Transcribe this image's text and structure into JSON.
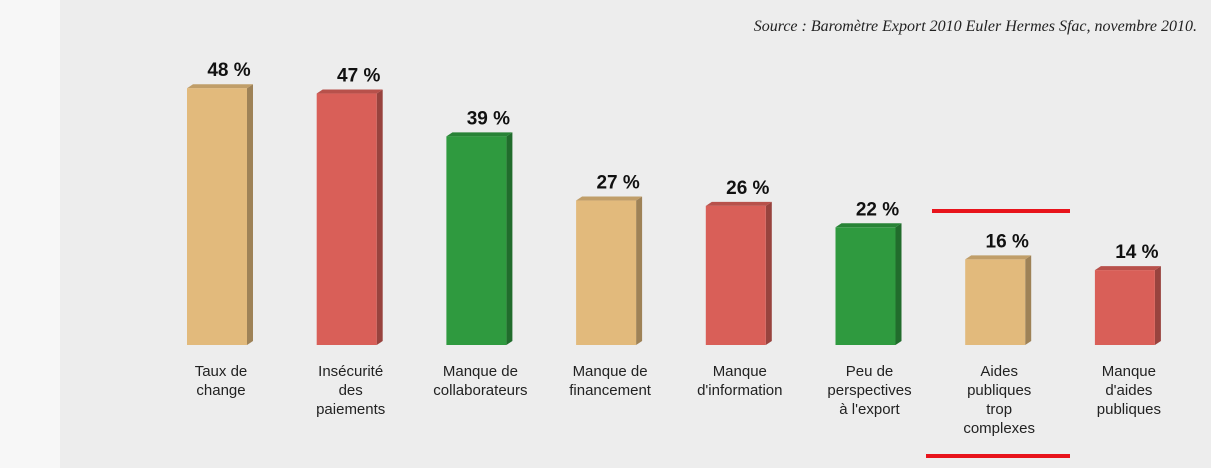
{
  "chart_data": {
    "type": "bar",
    "source": "Source : Baromètre Export 2010 Euler Hermes Sfac, novembre 2010.",
    "categories": [
      "Taux de\nchange",
      "Insécurité\ndes\npaiements",
      "Manque de\ncollaborateurs",
      "Manque de\nfinancement",
      "Manque\nd'information",
      "Peu de\nperspectives\nà l'export",
      "Aides\npubliques\ntrop\ncomplexes",
      "Manque\nd'aides\npubliques"
    ],
    "values": [
      48,
      47,
      39,
      27,
      26,
      22,
      16,
      14
    ],
    "value_labels": [
      "48 %",
      "47 %",
      "39 %",
      "27 %",
      "26 %",
      "22 %",
      "16 %",
      "14 %"
    ],
    "colors": [
      "#e2ba7c",
      "#d95f58",
      "#2f9a3f",
      "#e2ba7c",
      "#d95f58",
      "#2f9a3f",
      "#e2ba7c",
      "#d95f58"
    ]
  }
}
